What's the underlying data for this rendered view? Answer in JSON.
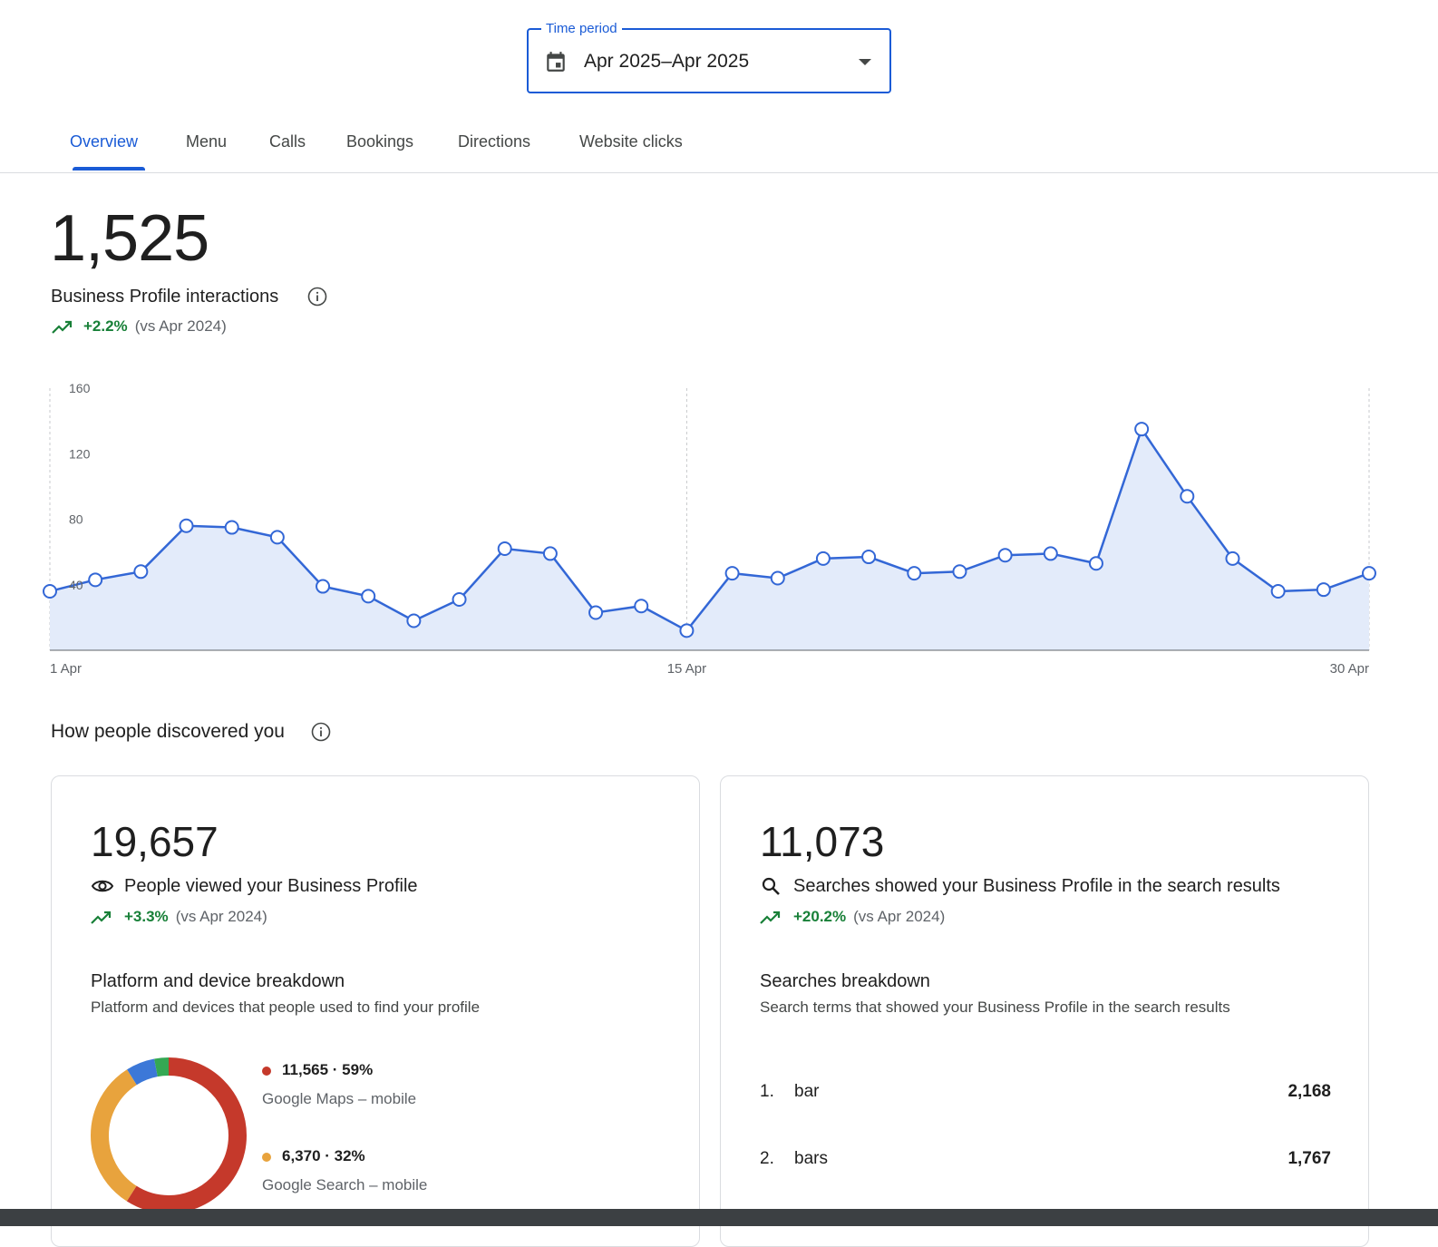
{
  "time_period": {
    "legend": "Time period",
    "value": "Apr 2025–Apr 2025",
    "icon": "calendar-icon"
  },
  "tabs": [
    {
      "label": "Overview",
      "active": true
    },
    {
      "label": "Menu",
      "active": false
    },
    {
      "label": "Calls",
      "active": false
    },
    {
      "label": "Bookings",
      "active": false
    },
    {
      "label": "Directions",
      "active": false
    },
    {
      "label": "Website clicks",
      "active": false
    }
  ],
  "interactions": {
    "total": "1,525",
    "label": "Business Profile interactions",
    "change": "+2.2%",
    "comparison": "(vs Apr 2024)"
  },
  "chart_data": {
    "type": "area",
    "title": "",
    "xlabel": "",
    "ylabel": "",
    "ylim": [
      0,
      160
    ],
    "yticks": [
      40,
      80,
      120,
      160
    ],
    "xtick_labels": [
      "1 Apr",
      "15 Apr",
      "30 Apr"
    ],
    "xtick_days": [
      1,
      15,
      30
    ],
    "x": [
      1,
      2,
      3,
      4,
      5,
      6,
      7,
      8,
      9,
      10,
      11,
      12,
      13,
      14,
      15,
      16,
      17,
      18,
      19,
      20,
      21,
      22,
      23,
      24,
      25,
      26,
      27,
      28,
      29,
      30
    ],
    "series": [
      {
        "values": [
          36,
          43,
          48,
          76,
          75,
          69,
          39,
          33,
          18,
          31,
          62,
          59,
          23,
          27,
          12,
          47,
          44,
          56,
          57,
          47,
          48,
          58,
          59,
          53,
          135,
          94,
          56,
          36,
          37,
          47
        ]
      }
    ],
    "color": "#3367d6",
    "fill": "#e3ebfa",
    "grid": false
  },
  "discovery": {
    "title": "How people discovered you"
  },
  "views_card": {
    "total": "19,657",
    "label": "People viewed your Business Profile",
    "change": "+3.3%",
    "comparison": "(vs Apr 2024)",
    "subtitle": "Platform and device breakdown",
    "description": "Platform and devices that people used to find your profile",
    "breakdown": [
      {
        "value": "11,565 · 59%",
        "label": "Google Maps – mobile",
        "color": "#c5392b",
        "share": 0.59
      },
      {
        "value": "6,370 · 32%",
        "label": "Google Search – mobile",
        "color": "#e8a33d",
        "share": 0.32
      },
      {
        "color": "#3c78d8",
        "share": 0.06
      },
      {
        "color": "#34a853",
        "share": 0.03
      }
    ]
  },
  "searches_card": {
    "total": "11,073",
    "label": "Searches showed your Business Profile in the search results",
    "change": "+20.2%",
    "comparison": "(vs Apr 2024)",
    "subtitle": "Searches breakdown",
    "description": "Search terms that showed your Business Profile in the search results",
    "terms": [
      {
        "rank": "1.",
        "term": "bar",
        "count": "2,168"
      },
      {
        "rank": "2.",
        "term": "bars",
        "count": "1,767"
      }
    ]
  }
}
